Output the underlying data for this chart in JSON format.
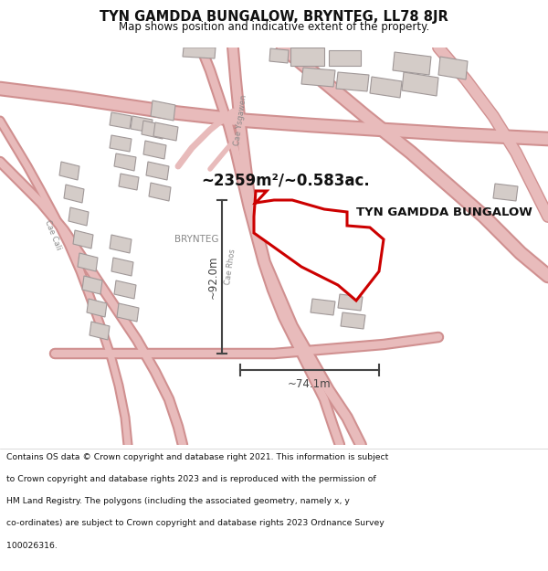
{
  "title_line1": "TYN GAMDDA BUNGALOW, BRYNTEG, LL78 8JR",
  "title_line2": "Map shows position and indicative extent of the property.",
  "property_label": "TYN GAMDDA BUNGALOW",
  "area_label": "~2359m²/~0.583ac.",
  "dim_horizontal": "~74.1m",
  "dim_vertical": "~92.0m",
  "street_label_brynteg": "BRYNTEG",
  "street_label_ysgawen": "Cae Ysgawen",
  "street_label_cali": "Cae Cali",
  "street_label_rhos": "Cae Rhos",
  "footer_lines": [
    "Contains OS data © Crown copyright and database right 2021. This information is subject",
    "to Crown copyright and database rights 2023 and is reproduced with the permission of",
    "HM Land Registry. The polygons (including the associated geometry, namely x, y",
    "co-ordinates) are subject to Crown copyright and database rights 2023 Ordnance Survey",
    "100026316."
  ],
  "map_bg": "#f7f3f0",
  "road_color": "#e8bbbb",
  "road_outline_color": "#d09090",
  "building_fill": "#d4ccc8",
  "building_edge": "#a09898",
  "highlight_color": "#cc0000",
  "highlight_fill": "#ffffff",
  "text_color": "#111111",
  "dim_color": "#444444",
  "street_color": "#888888",
  "footer_color": "#111111",
  "white": "#ffffff"
}
